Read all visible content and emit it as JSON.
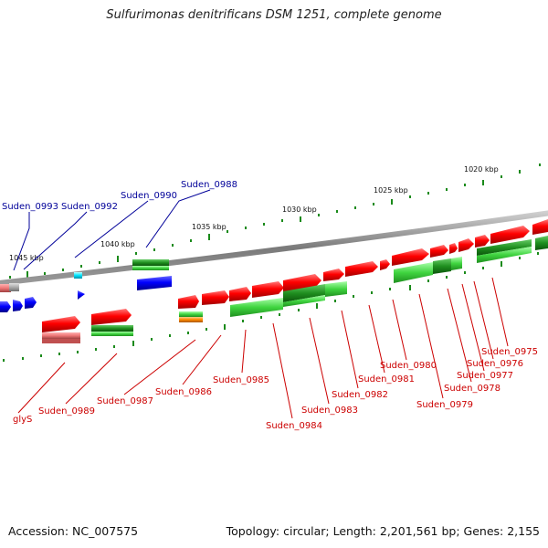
{
  "title": "Sulfurimonas denitrificans DSM 1251, complete genome",
  "footer": {
    "accession": "Accession: NC_007575",
    "summary": "Topology: circular; Length: 2,201,561 bp; Genes: 2,155"
  },
  "scale_labels": [
    "1020 kbp",
    "1025 kbp",
    "1030 kbp",
    "1035 kbp",
    "1040 kbp",
    "1045 kbp"
  ],
  "gene_labels_blue": [
    "Suden_0993",
    "Suden_0992",
    "Suden_0990",
    "Suden_0988"
  ],
  "gene_labels_red": [
    "glyS",
    "Suden_0989",
    "Suden_0987",
    "Suden_0986",
    "Suden_0985",
    "Suden_0984",
    "Suden_0983",
    "Suden_0982",
    "Suden_0981",
    "Suden_0980",
    "Suden_0979",
    "Suden_0978",
    "Suden_0977",
    "Suden_0976",
    "Suden_0975"
  ],
  "colors": {
    "forward_gene": "#ff0000",
    "reverse_gene": "#0000ff",
    "rna_gene": "#00e5ff",
    "cds_forward_track": "#1a8a1a",
    "cds_light_track": "#33cc33",
    "other_feature": "#ff8800",
    "pseudo": "#ee7777",
    "backbone": "#888888",
    "label_red": "#cc0000",
    "label_blue": "#000099"
  }
}
